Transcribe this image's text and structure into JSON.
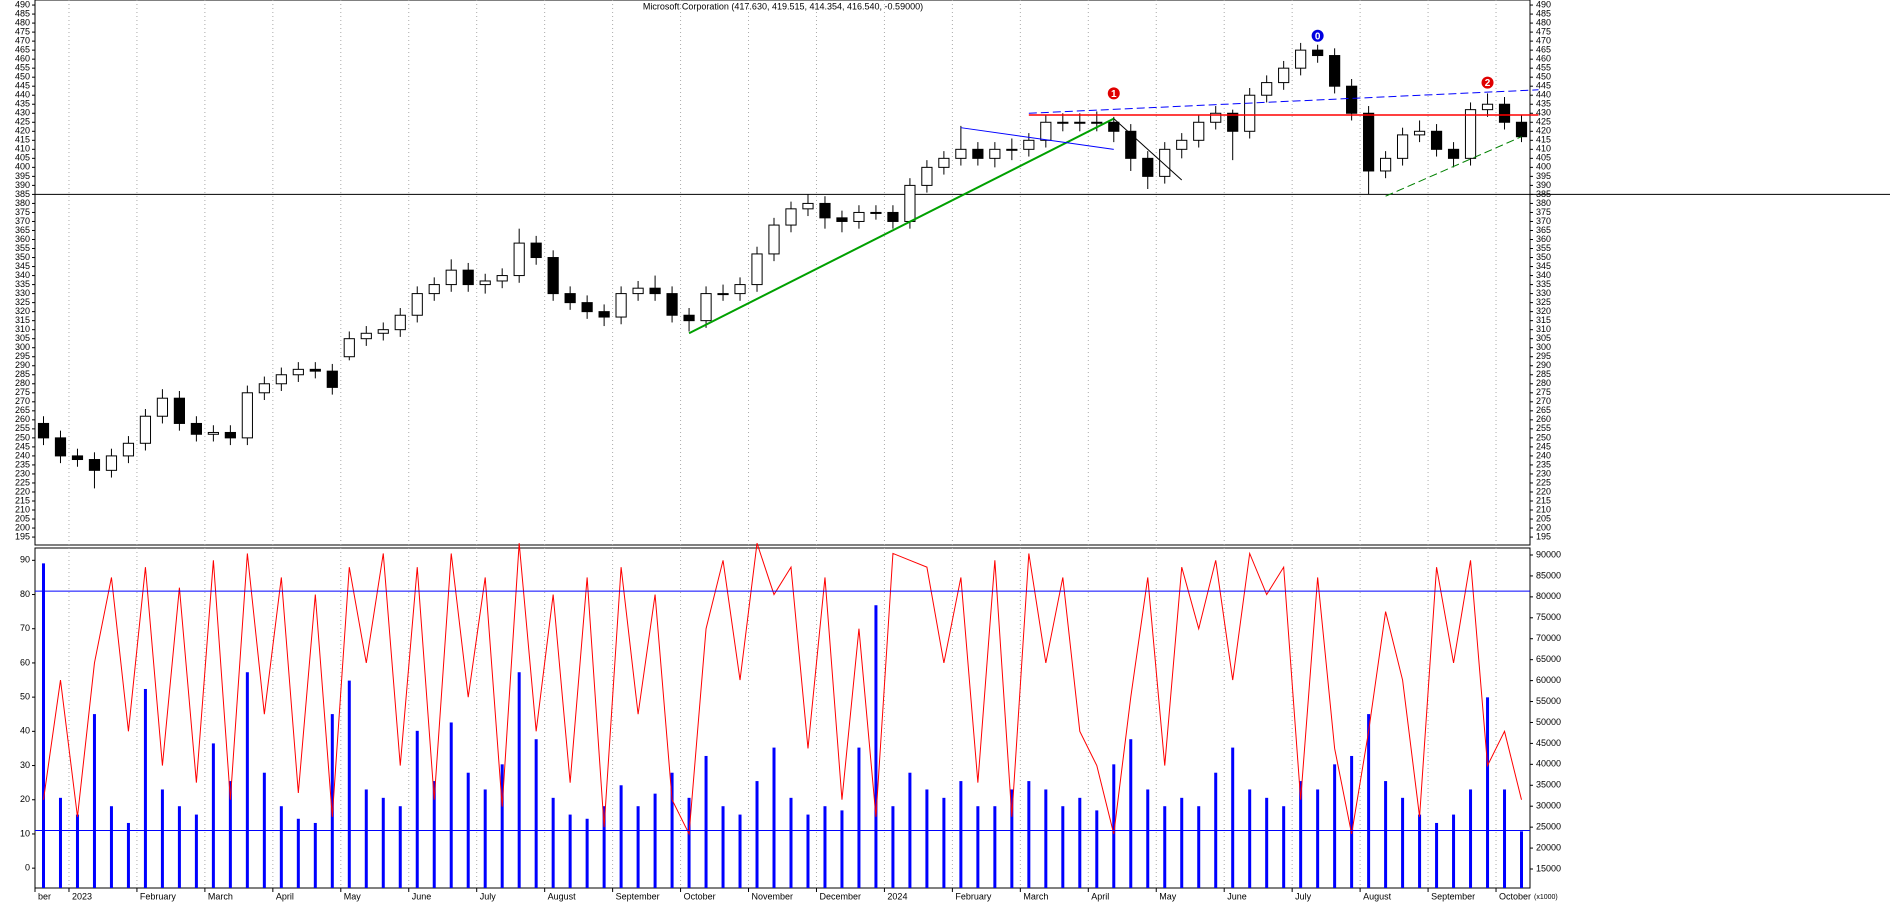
{
  "chart_data": [
    {
      "type": "candlestick",
      "title": "Microsoft Corporation (417.630, 419.515, 414.354, 416.540, -0.59000)",
      "categories": [
        "ber",
        null,
        "2023",
        null,
        null,
        null,
        "February",
        null,
        null,
        null,
        "March",
        null,
        null,
        null,
        "April",
        null,
        null,
        null,
        "May",
        null,
        null,
        null,
        "June",
        null,
        null,
        null,
        "July",
        null,
        null,
        null,
        "August",
        null,
        null,
        null,
        "September",
        null,
        null,
        null,
        "October",
        null,
        null,
        null,
        "November",
        null,
        null,
        null,
        "December",
        null,
        null,
        null,
        "2024",
        null,
        null,
        null,
        "February",
        null,
        null,
        null,
        "March",
        null,
        null,
        null,
        "April",
        null,
        null,
        null,
        "May",
        null,
        null,
        null,
        "June",
        null,
        null,
        null,
        "July",
        null,
        null,
        null,
        "August",
        null,
        null,
        null,
        "September",
        null,
        null,
        null,
        "October",
        null
      ],
      "open": [
        258,
        250,
        240,
        238,
        232,
        240,
        247,
        262,
        272,
        258,
        252,
        253,
        250,
        275,
        280,
        285,
        288,
        287,
        295,
        305,
        308,
        310,
        318,
        330,
        335,
        343,
        335,
        337,
        340,
        358,
        350,
        330,
        325,
        320,
        317,
        330,
        333,
        330,
        318,
        315,
        330,
        330,
        335,
        352,
        368,
        377,
        380,
        372,
        370,
        375,
        375,
        370,
        390,
        400,
        405,
        410,
        405,
        410,
        410,
        415,
        425,
        425,
        425,
        425,
        420,
        405,
        395,
        410,
        415,
        425,
        430,
        420,
        440,
        447,
        455,
        465,
        462,
        445,
        430,
        398,
        405,
        418,
        420,
        410,
        405,
        432,
        435,
        425
      ],
      "high": [
        262,
        254,
        244,
        242,
        244,
        251,
        266,
        277,
        276,
        262,
        257,
        257,
        279,
        284,
        289,
        292,
        292,
        291,
        309,
        312,
        314,
        322,
        334,
        339,
        349,
        347,
        341,
        344,
        366,
        362,
        354,
        334,
        329,
        324,
        334,
        337,
        340,
        334,
        322,
        334,
        335,
        339,
        356,
        372,
        381,
        385,
        384,
        376,
        379,
        379,
        379,
        394,
        404,
        409,
        423,
        414,
        414,
        416,
        419,
        429,
        430,
        430,
        431,
        428,
        424,
        409,
        414,
        419,
        429,
        434,
        432,
        444,
        451,
        459,
        469,
        468,
        466,
        449,
        434,
        409,
        422,
        426,
        424,
        414,
        436,
        441,
        439,
        429
      ],
      "low": [
        246,
        236,
        234,
        222,
        228,
        236,
        243,
        258,
        254,
        248,
        248,
        246,
        246,
        271,
        276,
        281,
        283,
        274,
        293,
        301,
        304,
        306,
        314,
        326,
        331,
        331,
        330,
        333,
        336,
        346,
        326,
        321,
        316,
        312,
        313,
        326,
        326,
        314,
        309,
        311,
        326,
        326,
        331,
        348,
        364,
        373,
        366,
        364,
        366,
        371,
        366,
        366,
        386,
        396,
        401,
        401,
        400,
        404,
        406,
        411,
        420,
        420,
        420,
        414,
        398,
        388,
        391,
        405,
        411,
        421,
        404,
        416,
        436,
        443,
        451,
        458,
        441,
        426,
        385,
        394,
        401,
        414,
        406,
        400,
        401,
        428,
        421,
        414
      ],
      "close": [
        250,
        240,
        238,
        232,
        240,
        247,
        262,
        272,
        258,
        252,
        253,
        250,
        275,
        280,
        285,
        288,
        287,
        278,
        305,
        308,
        310,
        318,
        330,
        335,
        343,
        335,
        337,
        340,
        358,
        350,
        330,
        325,
        320,
        317,
        330,
        333,
        330,
        318,
        315,
        330,
        330,
        335,
        352,
        368,
        377,
        380,
        372,
        370,
        375,
        375,
        370,
        390,
        400,
        405,
        410,
        405,
        410,
        410,
        415,
        425,
        425,
        425,
        425,
        420,
        405,
        395,
        410,
        415,
        425,
        430,
        420,
        440,
        447,
        455,
        465,
        462,
        445,
        430,
        398,
        405,
        418,
        420,
        410,
        405,
        432,
        435,
        425,
        417
      ],
      "up_color": "#ffffff",
      "down_color": "#000000",
      "ylim": [
        190.6,
        492.8
      ],
      "yticks": [
        195,
        200,
        205,
        210,
        215,
        220,
        225,
        230,
        235,
        240,
        245,
        250,
        255,
        260,
        265,
        270,
        275,
        280,
        285,
        290,
        295,
        300,
        305,
        310,
        315,
        320,
        325,
        330,
        335,
        340,
        345,
        350,
        355,
        360,
        365,
        370,
        375,
        380,
        385,
        390,
        395,
        400,
        405,
        410,
        415,
        420,
        425,
        430,
        435,
        440,
        445,
        450,
        455,
        460,
        465,
        470,
        475,
        480,
        485,
        490
      ],
      "grid": true,
      "hlines": [
        {
          "value": 385,
          "color": "#000000"
        }
      ],
      "lines": [
        {
          "x": [
            38,
            63
          ],
          "y": [
            308,
            427
          ],
          "color": "#00a000",
          "width": 2,
          "dash": false
        },
        {
          "x": [
            54,
            63
          ],
          "y": [
            422,
            410
          ],
          "color": "#0000ff",
          "width": 1,
          "dash": false
        },
        {
          "x": [
            63,
            67
          ],
          "y": [
            427,
            393
          ],
          "color": "#000000",
          "width": 1,
          "dash": false
        },
        {
          "x": [
            58,
            88
          ],
          "y": [
            429,
            429
          ],
          "color": "#ff0000",
          "width": 1.5,
          "dash": false
        },
        {
          "x": [
            58,
            88
          ],
          "y": [
            430,
            443
          ],
          "color": "#0000ff",
          "width": 1,
          "dash": true
        },
        {
          "x": [
            79,
            87
          ],
          "y": [
            384,
            417
          ],
          "color": "#008000",
          "width": 1,
          "dash": true
        }
      ],
      "markers": [
        {
          "label": "1",
          "x": 63,
          "y": 441,
          "color": "#e00000"
        },
        {
          "label": "0",
          "x": 75,
          "y": 473,
          "color": "#0000e0"
        },
        {
          "label": "2",
          "x": 85,
          "y": 447,
          "color": "#e00000"
        }
      ]
    },
    {
      "type": "oscillator-volume",
      "series": [
        {
          "name": "Volume",
          "color": "#0000ff",
          "axis": "y2",
          "values": [
            88000,
            32000,
            28000,
            52000,
            30000,
            26000,
            58000,
            34000,
            30000,
            28000,
            45000,
            36000,
            62000,
            38000,
            30000,
            27000,
            26000,
            52000,
            60000,
            34000,
            32000,
            30000,
            48000,
            36000,
            50000,
            38000,
            34000,
            40000,
            62000,
            46000,
            32000,
            28000,
            27000,
            30000,
            35000,
            30000,
            33000,
            38000,
            32000,
            42000,
            30000,
            28000,
            36000,
            44000,
            32000,
            28000,
            30000,
            29000,
            44000,
            78000,
            30000,
            38000,
            34000,
            32000,
            36000,
            30000,
            30000,
            34000,
            36000,
            34000,
            30000,
            32000,
            29000,
            40000,
            46000,
            34000,
            30000,
            32000,
            30000,
            38000,
            44000,
            34000,
            32000,
            30000,
            36000,
            34000,
            40000,
            42000,
            52000,
            36000,
            32000,
            28000,
            26000,
            28000,
            34000,
            56000,
            34000,
            24000
          ]
        },
        {
          "name": "Oscillator",
          "color": "#ff0000",
          "values": [
            20,
            55,
            15,
            60,
            85,
            40,
            88,
            30,
            82,
            25,
            90,
            20,
            92,
            45,
            85,
            22,
            80,
            15,
            88,
            60,
            92,
            30,
            88,
            20,
            92,
            50,
            85,
            18,
            95,
            40,
            80,
            25,
            85,
            12,
            88,
            45,
            80,
            20,
            10,
            70,
            90,
            55,
            95,
            80,
            88,
            35,
            85,
            20,
            70,
            15,
            92,
            90,
            88,
            60,
            85,
            25,
            90,
            15,
            92,
            60,
            85,
            40,
            30,
            10,
            50,
            85,
            30,
            88,
            70,
            90,
            55,
            92,
            80,
            88,
            20,
            85,
            35,
            10,
            40,
            75,
            55,
            15,
            88,
            60,
            90,
            30,
            40,
            20
          ]
        }
      ],
      "ylim": [
        -5.8,
        93.6
      ],
      "yticks": [
        0,
        10,
        20,
        30,
        40,
        50,
        60,
        70,
        80,
        90
      ],
      "y2lim": [
        10465,
        91671
      ],
      "y2ticks": [
        15000,
        20000,
        25000,
        30000,
        35000,
        40000,
        45000,
        50000,
        55000,
        60000,
        65000,
        70000,
        75000,
        80000,
        85000,
        90000
      ],
      "y2unit": "(x1000)",
      "hlines": [
        {
          "value": 81,
          "color": "#0000ff"
        },
        {
          "value": 11,
          "color": "#0000ff"
        }
      ]
    }
  ]
}
